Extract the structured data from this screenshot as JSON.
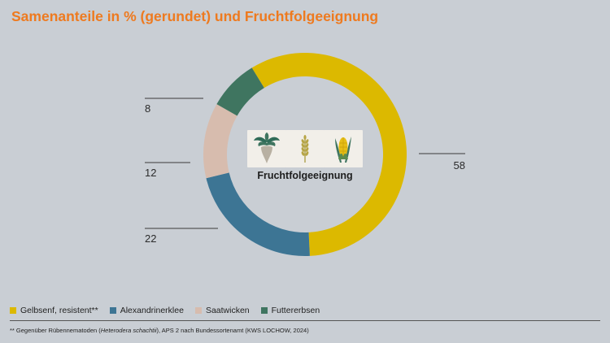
{
  "title": "Samenanteile in % (gerundet) und Fruchtfolgeeignung",
  "center": {
    "title": "Fruchtfolgeeignung",
    "icons": [
      "sugar-beet-icon",
      "wheat-icon",
      "corn-icon"
    ]
  },
  "chart_data": {
    "type": "pie",
    "donut": true,
    "categories": [
      "Gelbsenf, resistent**",
      "Alexandrinerklee",
      "Saatwicken",
      "Futtererbsen"
    ],
    "values": [
      58,
      22,
      12,
      8
    ],
    "colors": [
      "#dcb900",
      "#3d7594",
      "#d7bcae",
      "#3f7560"
    ],
    "unit": "%",
    "title": "Samenanteile in % (gerundet) und Fruchtfolgeeignung"
  },
  "legend": [
    {
      "label": "Gelbsenf, resistent**",
      "color": "#dcb900"
    },
    {
      "label": "Alexandrinerklee",
      "color": "#3d7594"
    },
    {
      "label": "Saatwicken",
      "color": "#d7bcae"
    },
    {
      "label": "Futtererbsen",
      "color": "#3f7560"
    }
  ],
  "footnote": {
    "prefix": "** Gegenüber Rübennematoden (",
    "italic": "Heterodera schachtii",
    "suffix": "), APS 2 nach Bundessortenamt (KWS LOCHOW, 2024)"
  }
}
